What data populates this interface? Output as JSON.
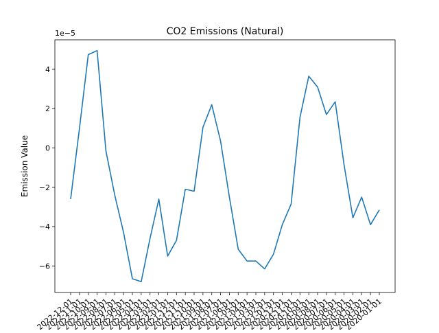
{
  "chart_data": {
    "type": "line",
    "title": "CO2 Emissions (Natural)",
    "xlabel": "",
    "ylabel": "Emission Value",
    "y_offset_label": "1e−5",
    "x": [
      "2022-12-01",
      "2022-11-01",
      "2022-10-01",
      "2022-09-01",
      "2022-08-01",
      "2022-07-01",
      "2022-06-01",
      "2022-05-01",
      "2022-04-01",
      "2022-03-01",
      "2022-02-01",
      "2022-01-01",
      "2021-12-01",
      "2021-11-01",
      "2021-10-01",
      "2021-09-01",
      "2021-08-01",
      "2021-07-01",
      "2021-06-01",
      "2021-05-01",
      "2021-04-01",
      "2021-03-01",
      "2021-02-01",
      "2021-01-01",
      "2020-12-01",
      "2020-11-01",
      "2020-10-01",
      "2020-09-01",
      "2020-08-01",
      "2020-07-01",
      "2020-06-01",
      "2020-05-01",
      "2020-04-01",
      "2020-03-01",
      "2020-02-01",
      "2020-01-01"
    ],
    "series": [
      {
        "values": [
          -2.6,
          1.0,
          4.75,
          4.95,
          -0.15,
          -2.4,
          -4.3,
          -6.65,
          -6.8,
          -4.6,
          -2.6,
          -5.5,
          -4.7,
          -2.1,
          -2.2,
          1.05,
          2.2,
          0.35,
          -2.5,
          -5.15,
          -5.75,
          -5.75,
          -6.15,
          -5.4,
          -3.9,
          -2.85,
          1.55,
          3.65,
          3.1,
          1.7,
          2.35,
          -0.85,
          -3.55,
          -2.5,
          -3.9,
          -3.15
        ]
      }
    ],
    "yticks": [
      -6,
      -4,
      -2,
      0,
      2,
      4
    ],
    "ylim": [
      -7.35,
      5.5
    ],
    "grid": false,
    "line_color": "#1f77b4"
  }
}
